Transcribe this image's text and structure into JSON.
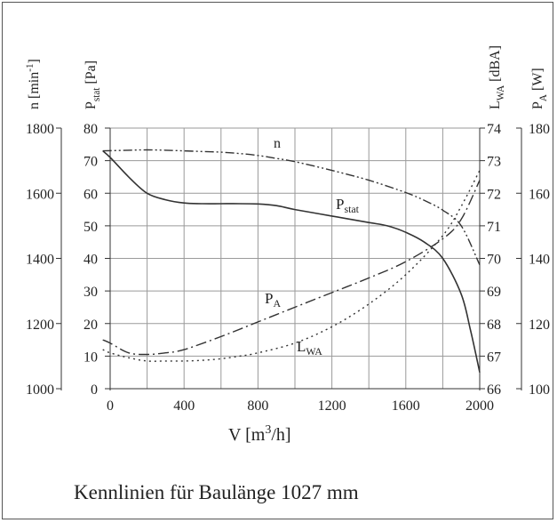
{
  "chart_data": {
    "type": "line",
    "caption": "Kennlinien für Baulänge 1027 mm",
    "x": {
      "label_main": "V [m",
      "label_sup": "3",
      "label_end": "/h]",
      "range": [
        0,
        2000
      ],
      "ticks": [
        0,
        400,
        800,
        1200,
        1600,
        2000
      ],
      "tick_labels": [
        "0",
        "400",
        "800",
        "1200",
        "1600",
        "2000"
      ]
    },
    "axes": {
      "n": {
        "label_main": "n [min",
        "label_sup": "-1",
        "label_end": "]",
        "range": [
          1000,
          1800
        ],
        "ticks": [
          1000,
          1200,
          1400,
          1600,
          1800
        ],
        "tick_labels": [
          "1000",
          "1200",
          "1400",
          "1600",
          "1800"
        ]
      },
      "pstat": {
        "label_main": "P",
        "label_sub": "stat",
        "label_end": " [Pa]",
        "range": [
          0,
          80
        ],
        "ticks": [
          0,
          10,
          20,
          30,
          40,
          50,
          60,
          70,
          80
        ],
        "tick_labels": [
          "0",
          "10",
          "20",
          "30",
          "40",
          "50",
          "60",
          "70",
          "80"
        ]
      },
      "lwa": {
        "label_main": "L",
        "label_sub": "WA",
        "label_end": " [dBA]",
        "range": [
          66,
          74
        ],
        "ticks": [
          66,
          67,
          68,
          69,
          70,
          71,
          72,
          73,
          74
        ],
        "tick_labels": [
          "66",
          "67",
          "68",
          "69",
          "70",
          "71",
          "72",
          "73",
          "74"
        ]
      },
      "pa": {
        "label_main": "P",
        "label_sub": "A",
        "label_end": " [W]",
        "range": [
          100,
          180
        ],
        "ticks": [
          100,
          120,
          140,
          160,
          180
        ],
        "tick_labels": [
          "100",
          "120",
          "140",
          "160",
          "180"
        ]
      }
    },
    "series": [
      {
        "id": "n",
        "name": "n",
        "axis": "n",
        "style": "dashdotdot",
        "x": [
          -40,
          100,
          200,
          300,
          400,
          500,
          600,
          700,
          800,
          900,
          1000,
          1200,
          1400,
          1600,
          1700,
          1800,
          1900,
          2000
        ],
        "y": [
          1730,
          1732,
          1733,
          1732,
          1730,
          1728,
          1726,
          1722,
          1716,
          1707,
          1697,
          1670,
          1640,
          1602,
          1578,
          1548,
          1500,
          1380
        ]
      },
      {
        "id": "pstat",
        "name_main": "P",
        "name_sub": "stat",
        "axis": "pstat",
        "style": "solid",
        "x": [
          -40,
          0,
          100,
          200,
          300,
          400,
          500,
          600,
          700,
          800,
          900,
          1000,
          1200,
          1400,
          1500,
          1600,
          1700,
          1800,
          1900,
          1950,
          2000
        ],
        "y": [
          73,
          71,
          65,
          60,
          58,
          57,
          56.8,
          56.8,
          56.8,
          56.7,
          56.2,
          55,
          53,
          51,
          50,
          48,
          45,
          40,
          29,
          18,
          5
        ]
      },
      {
        "id": "pa",
        "name_main": "P",
        "name_sub": "A",
        "axis": "pa",
        "style": "dashdot",
        "x": [
          -40,
          0,
          100,
          200,
          300,
          400,
          600,
          800,
          1000,
          1200,
          1400,
          1600,
          1800,
          1900,
          2000
        ],
        "y": [
          115,
          114,
          111,
          110.5,
          111,
          112,
          116,
          120.5,
          125,
          129.5,
          134,
          139,
          146,
          152,
          164
        ]
      },
      {
        "id": "lwa",
        "name_main": "L",
        "name_sub": "WA",
        "axis": "lwa",
        "style": "dotted",
        "x": [
          -40,
          0,
          100,
          200,
          300,
          400,
          500,
          600,
          700,
          800,
          1000,
          1200,
          1400,
          1600,
          1800,
          1900,
          2000
        ],
        "y": [
          67.2,
          67.1,
          66.95,
          66.85,
          66.85,
          66.85,
          66.87,
          66.92,
          67.0,
          67.1,
          67.4,
          67.9,
          68.6,
          69.5,
          70.7,
          71.6,
          72.7
        ]
      }
    ]
  }
}
